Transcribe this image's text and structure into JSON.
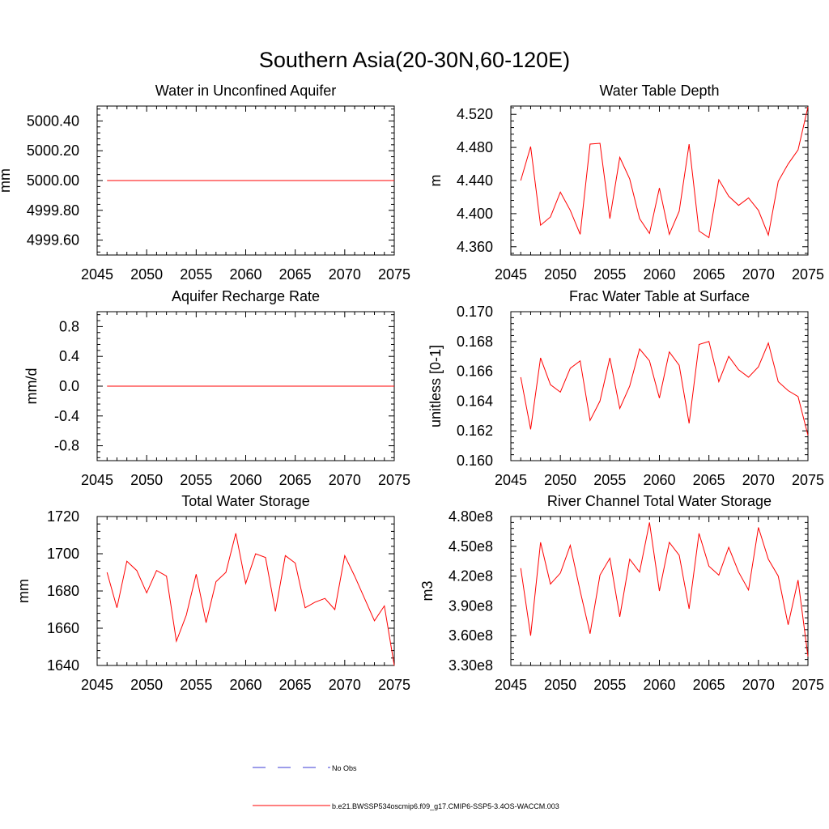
{
  "title": "Southern Asia(20-30N,60-120E)",
  "legend": {
    "entries": [
      {
        "label": "No Obs",
        "color": "#3b3bd6",
        "dash": true
      },
      {
        "label": "b.e21.BWSSP534oscmip6.f09_g17.CMIP6-SSP5-3.4OS-WACCM.003",
        "color": "#ff0000",
        "dash": false
      }
    ]
  },
  "chart_data": [
    {
      "type": "line",
      "title": "Water in Unconfined Aquifer",
      "ylabel": "mm",
      "xlim": [
        2045,
        2075
      ],
      "ylim": [
        4999.5,
        5000.5
      ],
      "xticks": [
        2045,
        2050,
        2055,
        2060,
        2065,
        2070,
        2075
      ],
      "xtick_labels": [
        "2045",
        "2050",
        "2055",
        "2060",
        "2065",
        "2070",
        "2075"
      ],
      "yticks": [
        4999.6,
        4999.8,
        5000.0,
        5000.2,
        5000.4
      ],
      "ytick_labels": [
        "4999.60",
        "4999.80",
        "5000.00",
        "5000.20",
        "5000.40"
      ],
      "series": [
        {
          "color": "#ff0000",
          "x": [
            2046,
            2075
          ],
          "values": [
            5000.0,
            5000.0
          ]
        }
      ]
    },
    {
      "type": "line",
      "title": "Water Table Depth",
      "ylabel": "m",
      "xlim": [
        2045,
        2075
      ],
      "ylim": [
        4.35,
        4.53
      ],
      "xticks": [
        2045,
        2050,
        2055,
        2060,
        2065,
        2070,
        2075
      ],
      "xtick_labels": [
        "2045",
        "2050",
        "2055",
        "2060",
        "2065",
        "2070",
        "2075"
      ],
      "yticks": [
        4.36,
        4.4,
        4.44,
        4.48,
        4.52
      ],
      "ytick_labels": [
        "4.360",
        "4.400",
        "4.440",
        "4.480",
        "4.520"
      ],
      "series": [
        {
          "color": "#ff0000",
          "x": [
            2046,
            2047,
            2048,
            2049,
            2050,
            2051,
            2052,
            2053,
            2054,
            2055,
            2056,
            2057,
            2058,
            2059,
            2060,
            2061,
            2062,
            2063,
            2064,
            2065,
            2066,
            2067,
            2068,
            2069,
            2070,
            2071,
            2072,
            2073,
            2074,
            2075
          ],
          "values": [
            4.44,
            4.481,
            4.386,
            4.396,
            4.426,
            4.404,
            4.375,
            4.484,
            4.485,
            4.394,
            4.468,
            4.442,
            4.394,
            4.376,
            4.431,
            4.375,
            4.403,
            4.484,
            4.379,
            4.371,
            4.441,
            4.421,
            4.41,
            4.419,
            4.404,
            4.374,
            4.439,
            4.46,
            4.477,
            4.529
          ]
        }
      ]
    },
    {
      "type": "line",
      "title": "Aquifer Recharge Rate",
      "ylabel": "mm/d",
      "xlim": [
        2045,
        2075
      ],
      "ylim": [
        -1.0,
        1.0
      ],
      "xticks": [
        2045,
        2050,
        2055,
        2060,
        2065,
        2070,
        2075
      ],
      "xtick_labels": [
        "2045",
        "2050",
        "2055",
        "2060",
        "2065",
        "2070",
        "2075"
      ],
      "yticks": [
        -0.8,
        -0.4,
        0.0,
        0.4,
        0.8
      ],
      "ytick_labels": [
        "-0.8",
        "-0.4",
        "0.0",
        "0.4",
        "0.8"
      ],
      "series": [
        {
          "color": "#ff0000",
          "x": [
            2046,
            2075
          ],
          "values": [
            0.0,
            0.0
          ]
        }
      ]
    },
    {
      "type": "line",
      "title": "Frac Water Table at Surface",
      "ylabel": "unitless [0-1]",
      "xlim": [
        2045,
        2075
      ],
      "ylim": [
        0.16,
        0.17
      ],
      "xticks": [
        2045,
        2050,
        2055,
        2060,
        2065,
        2070,
        2075
      ],
      "xtick_labels": [
        "2045",
        "2050",
        "2055",
        "2060",
        "2065",
        "2070",
        "2075"
      ],
      "yticks": [
        0.16,
        0.162,
        0.164,
        0.166,
        0.168,
        0.17
      ],
      "ytick_labels": [
        "0.160",
        "0.162",
        "0.164",
        "0.166",
        "0.168",
        "0.170"
      ],
      "series": [
        {
          "color": "#ff0000",
          "x": [
            2046,
            2047,
            2048,
            2049,
            2050,
            2051,
            2052,
            2053,
            2054,
            2055,
            2056,
            2057,
            2058,
            2059,
            2060,
            2061,
            2062,
            2063,
            2064,
            2065,
            2066,
            2067,
            2068,
            2069,
            2070,
            2071,
            2072,
            2073,
            2074,
            2075
          ],
          "values": [
            0.1656,
            0.1621,
            0.1669,
            0.1651,
            0.1646,
            0.1662,
            0.1667,
            0.1627,
            0.164,
            0.1669,
            0.1635,
            0.165,
            0.1675,
            0.1667,
            0.1642,
            0.1673,
            0.1664,
            0.1625,
            0.1678,
            0.168,
            0.1653,
            0.167,
            0.1661,
            0.1656,
            0.1663,
            0.1679,
            0.1653,
            0.1647,
            0.1643,
            0.1617
          ]
        }
      ]
    },
    {
      "type": "line",
      "title": "Total Water Storage",
      "ylabel": "mm",
      "xlim": [
        2045,
        2075
      ],
      "ylim": [
        1640,
        1720
      ],
      "xticks": [
        2045,
        2050,
        2055,
        2060,
        2065,
        2070,
        2075
      ],
      "xtick_labels": [
        "2045",
        "2050",
        "2055",
        "2060",
        "2065",
        "2070",
        "2075"
      ],
      "yticks": [
        1640,
        1660,
        1680,
        1700,
        1720
      ],
      "ytick_labels": [
        "1640",
        "1660",
        "1680",
        "1700",
        "1720"
      ],
      "series": [
        {
          "color": "#ff0000",
          "x": [
            2046,
            2047,
            2048,
            2049,
            2050,
            2051,
            2052,
            2053,
            2054,
            2055,
            2056,
            2057,
            2058,
            2059,
            2060,
            2061,
            2062,
            2063,
            2064,
            2065,
            2066,
            2067,
            2068,
            2069,
            2070,
            2071,
            2072,
            2073,
            2074,
            2075
          ],
          "values": [
            1690,
            1671,
            1696,
            1691,
            1679,
            1691,
            1688,
            1653,
            1667,
            1689,
            1663,
            1685,
            1690,
            1711,
            1684,
            1700,
            1698,
            1669,
            1699,
            1695,
            1671,
            1674,
            1676,
            1670,
            1699,
            1688,
            1676,
            1664,
            1672,
            1640
          ]
        }
      ]
    },
    {
      "type": "line",
      "title": "River Channel Total Water Storage",
      "ylabel": "m3",
      "xlim": [
        2045,
        2075
      ],
      "ylim": [
        330000000,
        480000000
      ],
      "xticks": [
        2045,
        2050,
        2055,
        2060,
        2065,
        2070,
        2075
      ],
      "xtick_labels": [
        "2045",
        "2050",
        "2055",
        "2060",
        "2065",
        "2070",
        "2075"
      ],
      "yticks": [
        330000000,
        360000000,
        390000000,
        420000000,
        450000000,
        480000000
      ],
      "ytick_labels": [
        "3.30e8",
        "3.60e8",
        "3.90e8",
        "4.20e8",
        "4.50e8",
        "4.80e8"
      ],
      "series": [
        {
          "color": "#ff0000",
          "x": [
            2046,
            2047,
            2048,
            2049,
            2050,
            2051,
            2052,
            2053,
            2054,
            2055,
            2056,
            2057,
            2058,
            2059,
            2060,
            2061,
            2062,
            2063,
            2064,
            2065,
            2066,
            2067,
            2068,
            2069,
            2070,
            2071,
            2072,
            2073,
            2074,
            2075
          ],
          "values": [
            428000000,
            360000000,
            454000000,
            412000000,
            423000000,
            451000000,
            405000000,
            362000000,
            421000000,
            438000000,
            379000000,
            437000000,
            424000000,
            474000000,
            405000000,
            454000000,
            441000000,
            387000000,
            463000000,
            430000000,
            421000000,
            449000000,
            424000000,
            406000000,
            469000000,
            437000000,
            420000000,
            371000000,
            416000000,
            339000000
          ]
        }
      ]
    }
  ]
}
